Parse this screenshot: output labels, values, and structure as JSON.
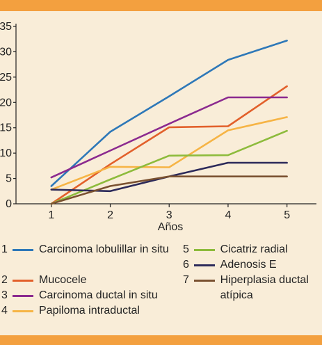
{
  "chart_data": {
    "type": "line",
    "xlabel": "Años",
    "ylabel": "",
    "x": [
      1,
      2,
      3,
      4,
      5
    ],
    "xlim": [
      0.4,
      5.5
    ],
    "ylim": [
      0,
      35
    ],
    "yticks": [
      0,
      5,
      10,
      15,
      20,
      25,
      30,
      35
    ],
    "xticks": [
      1,
      2,
      3,
      4,
      5
    ],
    "grid": false,
    "legend_position": "bottom",
    "series": [
      {
        "num": "1",
        "name": "Carcinoma lobulillar in situ",
        "color": "#2e78b8",
        "values": [
          3.5,
          14.2,
          21.2,
          28.4,
          32.2
        ]
      },
      {
        "num": "2",
        "name": "Mucocele",
        "color": "#e2602b",
        "values": [
          0,
          7.8,
          15.1,
          15.3,
          23.2
        ]
      },
      {
        "num": "3",
        "name": "Carcinoma ductal in situ",
        "color": "#8b2a8f",
        "values": [
          5.2,
          10.5,
          15.8,
          21.0,
          21.0
        ]
      },
      {
        "num": "4",
        "name": "Papiloma intraductal",
        "color": "#f6b445",
        "values": [
          2.8,
          7.3,
          7.2,
          14.5,
          17.1
        ]
      },
      {
        "num": "5",
        "name": "Cicatriz radial",
        "color": "#8dbb3c",
        "values": [
          0,
          4.8,
          9.5,
          9.6,
          14.4
        ]
      },
      {
        "num": "6",
        "name": "Adenosis E",
        "color": "#2c2a5a",
        "values": [
          2.8,
          2.5,
          5.4,
          8.1,
          8.1
        ]
      },
      {
        "num": "7",
        "name": "Hiperplasia ductal atípica",
        "color": "#7a5130",
        "values": [
          0,
          3.5,
          5.4,
          5.4,
          5.4
        ]
      }
    ]
  }
}
